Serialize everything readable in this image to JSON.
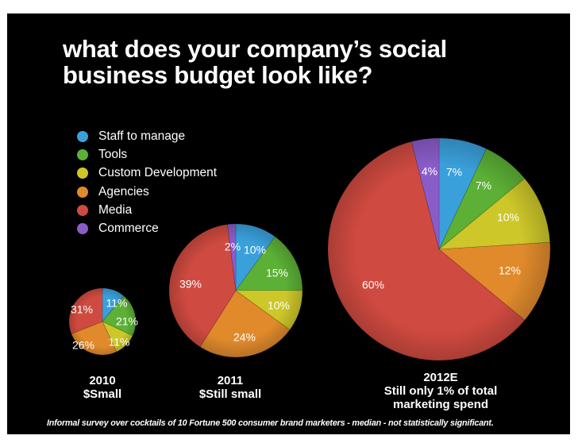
{
  "title_lines": [
    "what does your company’s social",
    "business budget look like?"
  ],
  "legend": [
    {
      "label": "Staff to manage",
      "color": "#3aa0dc"
    },
    {
      "label": "Tools",
      "color": "#5cb036"
    },
    {
      "label": "Custom Development",
      "color": "#cdc72a"
    },
    {
      "label": "Agencies",
      "color": "#e08a2c"
    },
    {
      "label": "Media",
      "color": "#cf4a40"
    },
    {
      "label": "Commerce",
      "color": "#8a5cc8"
    }
  ],
  "chart_data": [
    {
      "type": "pie",
      "title": "2010",
      "subtitle": "$Small",
      "categories": [
        "Staff to manage",
        "Tools",
        "Custom Development",
        "Agencies",
        "Media",
        "Commerce"
      ],
      "values": [
        11,
        21,
        11,
        26,
        31,
        0
      ],
      "labels": [
        "11%",
        "21%",
        "11%",
        "26%",
        "31%",
        ""
      ]
    },
    {
      "type": "pie",
      "title": "2011",
      "subtitle": "$Still small",
      "categories": [
        "Staff to manage",
        "Tools",
        "Custom Development",
        "Agencies",
        "Media",
        "Commerce"
      ],
      "values": [
        10,
        15,
        10,
        24,
        39,
        2
      ],
      "labels": [
        "10%",
        "15%",
        "10%",
        "24%",
        "39%",
        "2%"
      ]
    },
    {
      "type": "pie",
      "title": "2012E",
      "subtitle_lines": [
        "Still only 1% of total",
        "marketing spend"
      ],
      "categories": [
        "Staff to manage",
        "Tools",
        "Custom Development",
        "Agencies",
        "Media",
        "Commerce"
      ],
      "values": [
        7,
        7,
        10,
        12,
        60,
        4
      ],
      "labels": [
        "7%",
        "7%",
        "10%",
        "12%",
        "60%",
        "4%"
      ]
    }
  ],
  "footnote": "Informal survey over cocktails of 10 Fortune 500 consumer brand marketers - median - not statistically significant."
}
